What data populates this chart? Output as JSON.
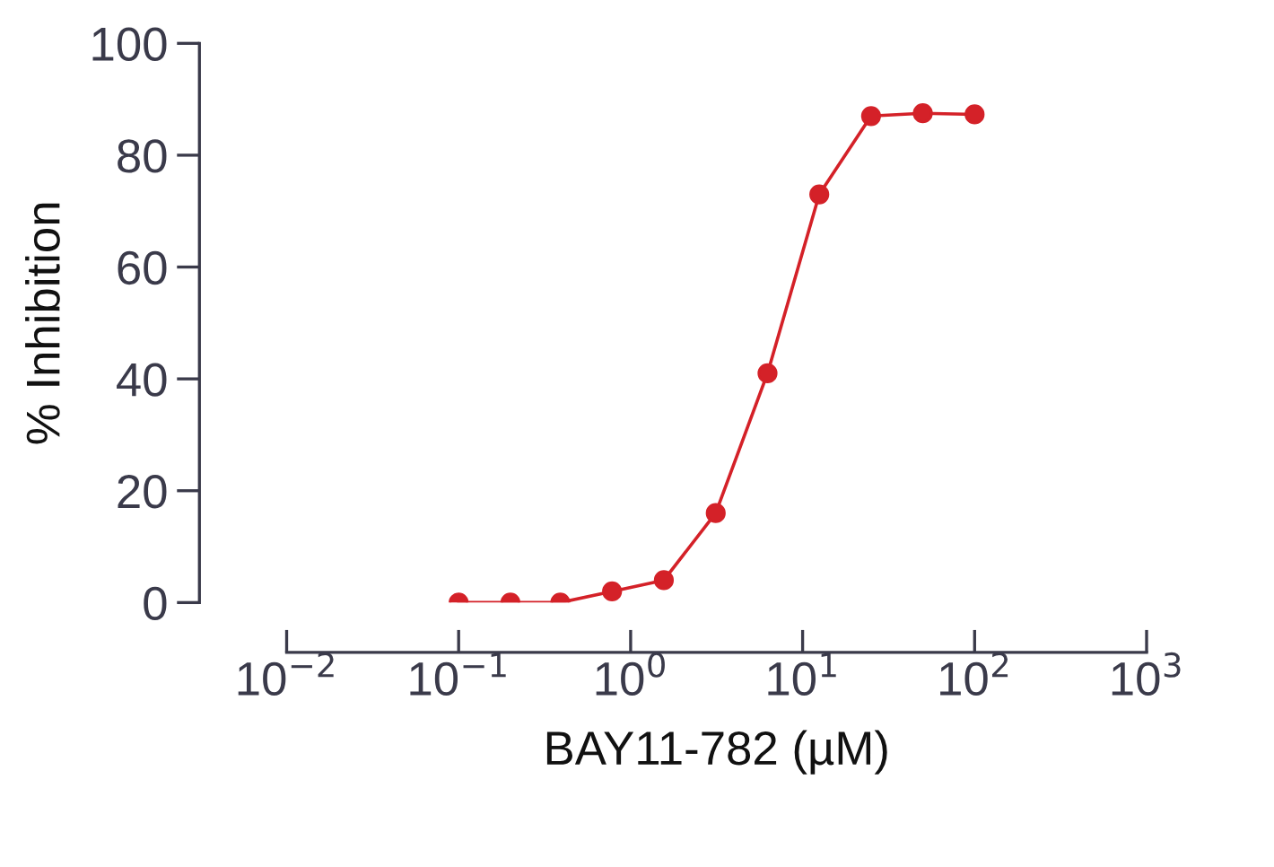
{
  "chart_data": {
    "type": "line",
    "xlabel": "BAY11-782 (µM)",
    "ylabel": "% Inhibition",
    "log": "x",
    "x": [
      0.1,
      0.2,
      0.39,
      0.78,
      1.56,
      3.125,
      6.25,
      12.5,
      25,
      50,
      100
    ],
    "series": [
      {
        "color": "#d42128",
        "values": [
          0,
          0,
          0,
          2,
          4,
          16,
          41,
          73,
          87,
          87.5,
          87.3
        ]
      }
    ],
    "marker": "circle",
    "line_style": "solid",
    "grid": false,
    "xlim": [
      0.01,
      1000
    ],
    "xticks": [
      {
        "value": 0.01,
        "label": "10$^{−2}$"
      },
      {
        "value": 0.1,
        "label": "10$^{−1}$"
      },
      {
        "value": 1,
        "label": "10$^{0}$"
      },
      {
        "value": 10,
        "label": "10$^{1}$"
      },
      {
        "value": 100,
        "label": "10$^{2}$"
      },
      {
        "value": 1000,
        "label": "10$^{3}$"
      }
    ],
    "ylim": [
      0,
      100
    ],
    "yticks": [
      0,
      20,
      40,
      60,
      80,
      100
    ]
  }
}
